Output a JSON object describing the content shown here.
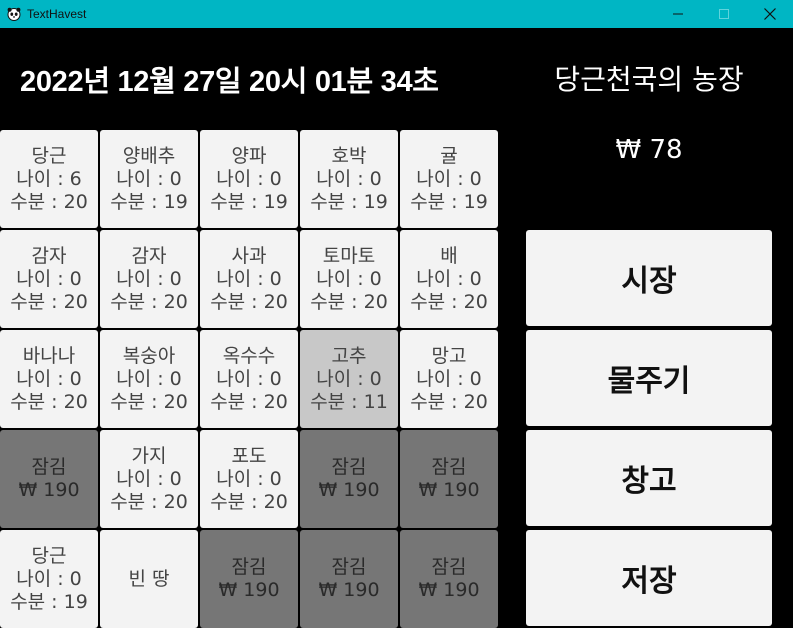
{
  "window": {
    "title": "TextHavest",
    "icon": "panda-icon"
  },
  "header": {
    "datetime": "2022년 12월 27일 20시 01분 34초",
    "farm_name": "당근천국의 농장",
    "money": "₩ 78"
  },
  "grid": [
    [
      {
        "state": "crop",
        "name": "당근",
        "age": "나이 : 6",
        "water": "수분 : 20"
      },
      {
        "state": "crop",
        "name": "양배추",
        "age": "나이 : 0",
        "water": "수분 : 19"
      },
      {
        "state": "crop",
        "name": "양파",
        "age": "나이 : 0",
        "water": "수분 : 19"
      },
      {
        "state": "crop",
        "name": "호박",
        "age": "나이 : 0",
        "water": "수분 : 19"
      },
      {
        "state": "crop",
        "name": "귤",
        "age": "나이 : 0",
        "water": "수분 : 19"
      }
    ],
    [
      {
        "state": "crop",
        "name": "감자",
        "age": "나이 : 0",
        "water": "수분 : 20"
      },
      {
        "state": "crop",
        "name": "감자",
        "age": "나이 : 0",
        "water": "수분 : 20"
      },
      {
        "state": "crop",
        "name": "사과",
        "age": "나이 : 0",
        "water": "수분 : 20"
      },
      {
        "state": "crop",
        "name": "토마토",
        "age": "나이 : 0",
        "water": "수분 : 20"
      },
      {
        "state": "crop",
        "name": "배",
        "age": "나이 : 0",
        "water": "수분 : 20"
      }
    ],
    [
      {
        "state": "crop",
        "name": "바나나",
        "age": "나이 : 0",
        "water": "수분 : 20"
      },
      {
        "state": "crop",
        "name": "복숭아",
        "age": "나이 : 0",
        "water": "수분 : 20"
      },
      {
        "state": "crop",
        "name": "옥수수",
        "age": "나이 : 0",
        "water": "수분 : 20"
      },
      {
        "state": "crop",
        "name": "고추",
        "age": "나이 : 0",
        "water": "수분 : 11",
        "selected": true
      },
      {
        "state": "crop",
        "name": "망고",
        "age": "나이 : 0",
        "water": "수분 : 20"
      }
    ],
    [
      {
        "state": "locked",
        "label": "잠김",
        "price": "₩ 190"
      },
      {
        "state": "crop",
        "name": "가지",
        "age": "나이 : 0",
        "water": "수분 : 20"
      },
      {
        "state": "crop",
        "name": "포도",
        "age": "나이 : 0",
        "water": "수분 : 20"
      },
      {
        "state": "locked",
        "label": "잠김",
        "price": "₩ 190"
      },
      {
        "state": "locked",
        "label": "잠김",
        "price": "₩ 190"
      }
    ],
    [
      {
        "state": "crop",
        "name": "당근",
        "age": "나이 : 0",
        "water": "수분 : 19"
      },
      {
        "state": "empty",
        "label": "빈 땅"
      },
      {
        "state": "locked",
        "label": "잠김",
        "price": "₩ 190"
      },
      {
        "state": "locked",
        "label": "잠김",
        "price": "₩ 190"
      },
      {
        "state": "locked",
        "label": "잠김",
        "price": "₩ 190"
      }
    ]
  ],
  "menu": {
    "market": "시장",
    "water": "물주기",
    "storage": "창고",
    "save": "저장"
  },
  "colors": {
    "titlebar": "#00b6c4",
    "background": "#000000",
    "cell": "#f3f3f3",
    "cell_selected": "#c8c8c8",
    "cell_locked": "#767676"
  }
}
